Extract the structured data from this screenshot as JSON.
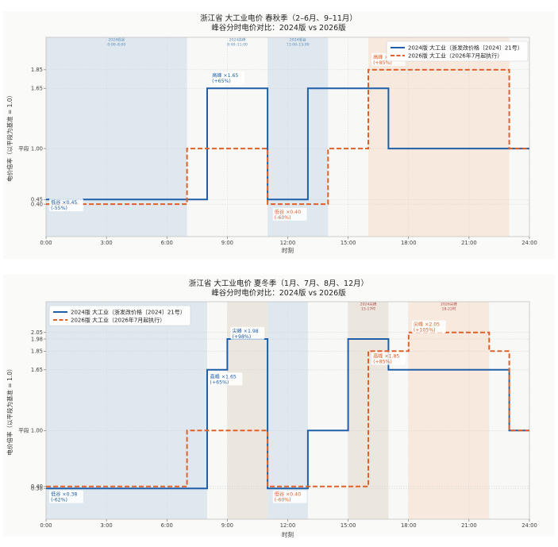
{
  "colors": {
    "s2024": "#1f5fa8",
    "s2026": "#e0602a",
    "valley_band": "#dce6ee",
    "peak_band": "#eae4dc",
    "sharp_band": "#f6e7dc",
    "plot_bg": "#f8f8f6",
    "ann_2024": "#1f5fa8",
    "ann_2026": "#d9622b",
    "sharp_lbl": "#b04a4a"
  },
  "chart_data": [
    {
      "type": "line",
      "title": "浙江省 大工业电价 春秋季（2–6月、9–11月）",
      "subtitle": "峰谷分时电价对比：2024版 vs 2026版",
      "xlabel": "时刻",
      "ylabel": "电价倍率（以平段为基准 = 1.0）",
      "xlim": [
        0,
        24
      ],
      "ylim": [
        0.05,
        2.2
      ],
      "grid": true,
      "legend_position": "top-right",
      "x_ticks": [
        {
          "v": 0,
          "label": "0:00"
        },
        {
          "v": 3,
          "label": "3:00"
        },
        {
          "v": 6,
          "label": "6:00"
        },
        {
          "v": 9,
          "label": "9:00"
        },
        {
          "v": 12,
          "label": "12:00"
        },
        {
          "v": 15,
          "label": "15:00"
        },
        {
          "v": 18,
          "label": "18:00"
        },
        {
          "v": 21,
          "label": "21:00"
        },
        {
          "v": 24,
          "label": "24:00"
        }
      ],
      "y_ticks": [
        {
          "v": 0.4,
          "label": "0.40"
        },
        {
          "v": 0.45,
          "label": "0.45"
        },
        {
          "v": 1.0,
          "label": "平段 1.00"
        },
        {
          "v": 1.65,
          "label": "1.65"
        },
        {
          "v": 1.85,
          "label": "1.85"
        }
      ],
      "bands": [
        {
          "x0": 0,
          "x1": 7,
          "kind": "valley",
          "label": "2024低谷\n0:00–8:00",
          "ly": 2.16
        },
        {
          "x0": 11,
          "x1": 14,
          "kind": "valley",
          "label": "2024低谷\n11:00–13:00",
          "ly": 2.16
        },
        {
          "x0": 16,
          "x1": 23,
          "kind": "sharp",
          "label": "",
          "ly": 2.16
        }
      ],
      "band_texts": [
        {
          "x": 9.5,
          "y": 2.16,
          "label": "2024高峰\n8:00–11:00",
          "color": "#5b8ab8"
        }
      ],
      "series": [
        {
          "name": "2024版 大工业（浙发改价格〔2024〕21号）",
          "key": "s2024",
          "dash": false,
          "x": [
            0,
            8,
            8,
            11,
            11,
            13,
            13,
            17,
            17,
            24
          ],
          "y": [
            0.45,
            0.45,
            1.65,
            1.65,
            0.45,
            0.45,
            1.65,
            1.65,
            1.0,
            1.0
          ]
        },
        {
          "name": "2026版 大工业（2026年7月起执行）",
          "key": "s2026",
          "dash": true,
          "x": [
            0,
            7,
            7,
            11,
            11,
            14,
            14,
            16,
            16,
            23,
            23,
            24
          ],
          "y": [
            0.4,
            0.4,
            1.0,
            1.0,
            0.4,
            0.4,
            1.0,
            1.0,
            1.85,
            1.85,
            1.0,
            1.0
          ]
        }
      ],
      "annotations": [
        {
          "x": 0.2,
          "y": 0.4,
          "lines": [
            "低谷 ×0.45",
            "(-55%)"
          ],
          "color": "ann_2024"
        },
        {
          "x": 8.2,
          "y": 1.77,
          "lines": [
            "高峰 ×1.65",
            "(+65%)"
          ],
          "color": "ann_2024"
        },
        {
          "x": 11.3,
          "y": 0.3,
          "lines": [
            "低谷 ×0.40",
            "(-60%)"
          ],
          "color": "ann_2026"
        },
        {
          "x": 16.2,
          "y": 1.97,
          "lines": [
            "高峰 ×1.85",
            "(+85%)"
          ],
          "color": "ann_2026"
        }
      ]
    },
    {
      "type": "line",
      "title": "浙江省 大工业电价 夏冬季（1月、7月、8月、12月）",
      "subtitle": "峰谷分时电价对比：2024版 vs 2026版",
      "xlabel": "时刻",
      "ylabel": "电价倍率（以平段为基准 = 1.0）",
      "xlim": [
        0,
        24
      ],
      "ylim": [
        0.05,
        2.38
      ],
      "grid": true,
      "legend_position": "top-left",
      "x_ticks": [
        {
          "v": 0,
          "label": "0:00"
        },
        {
          "v": 3,
          "label": "3:00"
        },
        {
          "v": 6,
          "label": "6:00"
        },
        {
          "v": 9,
          "label": "9:00"
        },
        {
          "v": 12,
          "label": "12:00"
        },
        {
          "v": 15,
          "label": "15:00"
        },
        {
          "v": 18,
          "label": "18:00"
        },
        {
          "v": 21,
          "label": "21:00"
        },
        {
          "v": 24,
          "label": "24:00"
        }
      ],
      "y_ticks": [
        {
          "v": 0.38,
          "label": "0.38"
        },
        {
          "v": 0.4,
          "label": "0.40"
        },
        {
          "v": 1.0,
          "label": "平段 1.00"
        },
        {
          "v": 1.65,
          "label": "1.65"
        },
        {
          "v": 1.85,
          "label": "1.85"
        },
        {
          "v": 1.98,
          "label": "1.98"
        },
        {
          "v": 2.05,
          "label": "2.05"
        }
      ],
      "bands": [
        {
          "x0": 0,
          "x1": 8,
          "kind": "valley",
          "label": "",
          "ly": 2.34
        },
        {
          "x0": 9,
          "x1": 11,
          "kind": "peak",
          "label": "",
          "ly": 2.34
        },
        {
          "x0": 11,
          "x1": 13,
          "kind": "valley",
          "label": "",
          "ly": 2.34
        },
        {
          "x0": 15,
          "x1": 17,
          "kind": "peak",
          "label": "2024尖峰\n15-17时",
          "ly": 2.34
        },
        {
          "x0": 18,
          "x1": 22,
          "kind": "sharp",
          "label": "2026尖峰\n18-22时",
          "ly": 2.34
        }
      ],
      "band_texts": [],
      "series": [
        {
          "name": "2024版 大工业（浙发改价格〔2024〕21号）",
          "key": "s2024",
          "dash": false,
          "x": [
            0,
            8,
            8,
            9,
            9,
            11,
            11,
            13,
            13,
            15,
            15,
            17,
            17,
            23,
            23,
            24
          ],
          "y": [
            0.38,
            0.38,
            1.65,
            1.65,
            1.98,
            1.98,
            0.38,
            0.38,
            1.0,
            1.0,
            1.98,
            1.98,
            1.65,
            1.65,
            1.0,
            1.0
          ]
        },
        {
          "name": "2026版 大工业（2026年7月起执行）",
          "key": "s2026",
          "dash": true,
          "x": [
            0,
            7,
            7,
            11,
            11,
            13,
            13,
            16,
            16,
            18,
            18,
            22,
            22,
            23,
            23,
            24
          ],
          "y": [
            0.4,
            0.4,
            1.0,
            1.0,
            0.4,
            0.4,
            0.4,
            0.4,
            1.85,
            1.85,
            2.05,
            2.05,
            1.85,
            1.85,
            1.0,
            1.0
          ]
        }
      ],
      "annotations": [
        {
          "x": 0.2,
          "y": 0.3,
          "lines": [
            "低谷 ×0.38",
            "(-62%)"
          ],
          "color": "ann_2024"
        },
        {
          "x": 8.1,
          "y": 1.56,
          "lines": [
            "高峰 ×1.65",
            "(+65%)"
          ],
          "color": "ann_2024"
        },
        {
          "x": 9.2,
          "y": 2.05,
          "lines": [
            "尖峰 ×1.98",
            "(+98%)"
          ],
          "color": "ann_2024"
        },
        {
          "x": 11.3,
          "y": 0.3,
          "lines": [
            "低谷 ×0.40",
            "(-60%)"
          ],
          "color": "ann_2026"
        },
        {
          "x": 16.2,
          "y": 1.78,
          "lines": [
            "高峰 ×1.85",
            "(+85%)"
          ],
          "color": "ann_2026"
        },
        {
          "x": 18.2,
          "y": 2.12,
          "lines": [
            "尖峰 ×2.05",
            "(+105%)"
          ],
          "color": "ann_2026"
        }
      ]
    }
  ]
}
